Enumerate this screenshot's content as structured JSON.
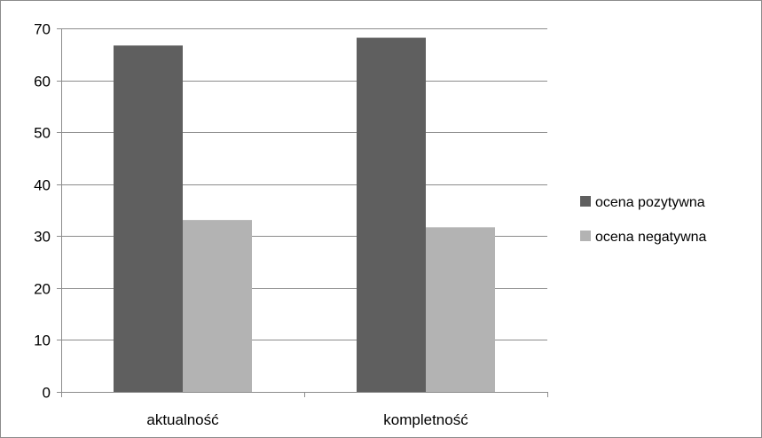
{
  "chart_data": {
    "type": "bar",
    "categories": [
      "aktualność",
      "kompletność"
    ],
    "series": [
      {
        "name": "ocena pozytywna",
        "values": [
          66.7,
          68.2
        ],
        "color": "#5f5f5f"
      },
      {
        "name": "ocena negatywna",
        "values": [
          33.1,
          31.7
        ],
        "color": "#b3b3b3"
      }
    ],
    "ylim": [
      0,
      70
    ],
    "yticks": [
      0,
      10,
      20,
      30,
      40,
      50,
      60,
      70
    ],
    "grid": true,
    "legend_position": "right",
    "gridline_color": "#8c8c8c"
  }
}
